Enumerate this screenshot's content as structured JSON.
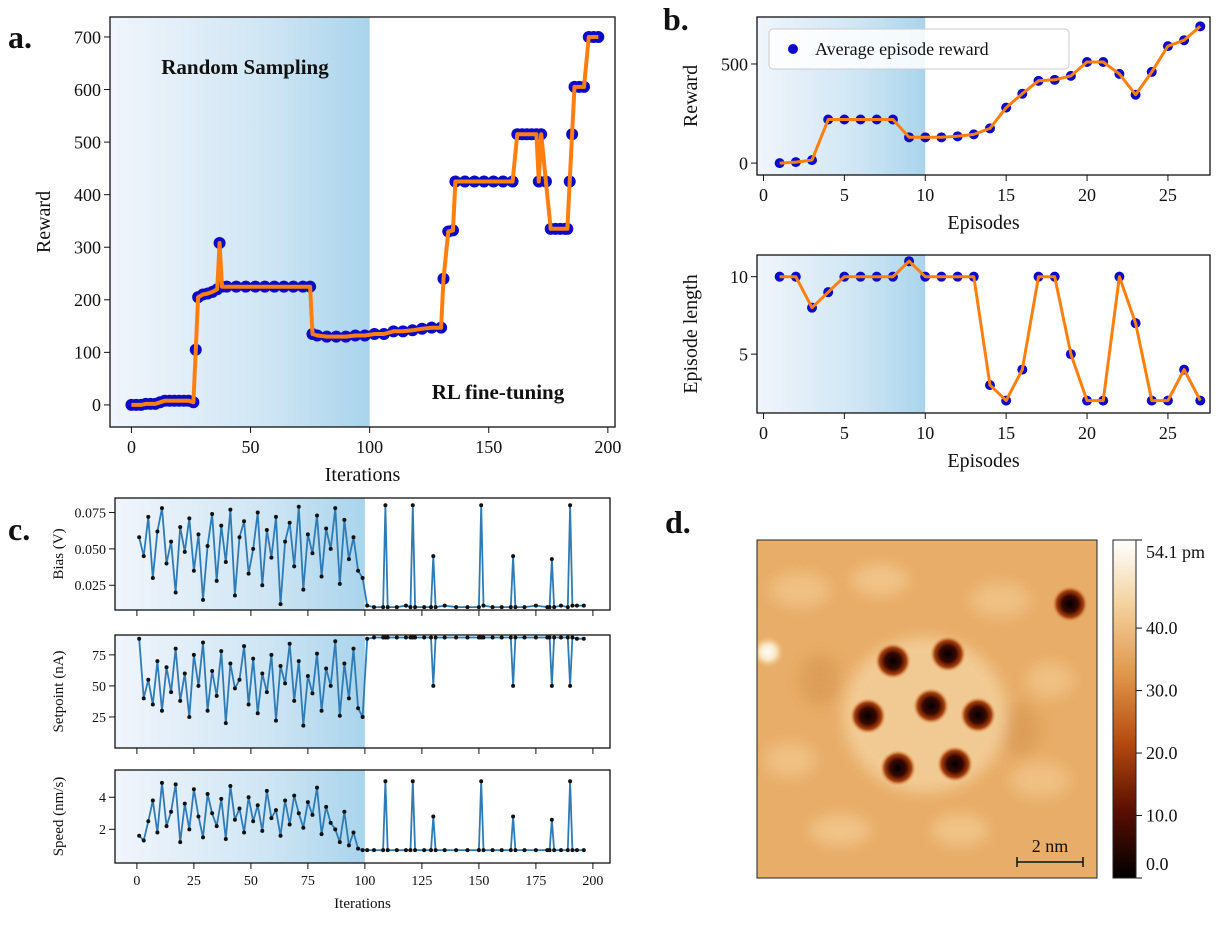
{
  "chart_data": [
    {
      "type": "line",
      "label": "a.",
      "xlabel": "Iterations",
      "ylabel": "Reward",
      "annotations": [
        "Random Sampling",
        "RL fine-tuning"
      ],
      "highlight_x": 100,
      "xlim": [
        -9,
        203
      ],
      "ylim": [
        -42,
        738
      ],
      "xticks": [
        0,
        50,
        100,
        150,
        200
      ],
      "yticks": [
        0,
        100,
        200,
        300,
        400,
        500,
        600,
        700
      ],
      "x": [
        0,
        2,
        4,
        6,
        8,
        10,
        12,
        14,
        16,
        18,
        20,
        22,
        24,
        26,
        27,
        28,
        30,
        32,
        34,
        36,
        37,
        38,
        40,
        44,
        48,
        52,
        56,
        60,
        64,
        68,
        72,
        75,
        76,
        78,
        82,
        86,
        90,
        94,
        98,
        102,
        106,
        110,
        114,
        118,
        122,
        126,
        130,
        131,
        133,
        135,
        136,
        140,
        144,
        148,
        152,
        156,
        160,
        162,
        164,
        166,
        168,
        170,
        171,
        172,
        174,
        176,
        178,
        180,
        182,
        183,
        184,
        185,
        186,
        188,
        190,
        192,
        194,
        196
      ],
      "series": [
        {
          "color": "#ff7f0e",
          "marker_color": "#0a0ac8",
          "values": [
            0,
            0,
            0,
            2,
            2,
            2,
            5,
            8,
            8,
            8,
            8,
            8,
            8,
            5,
            105,
            205,
            210,
            212,
            215,
            220,
            308,
            225,
            225,
            225,
            225,
            225,
            225,
            225,
            225,
            225,
            225,
            225,
            135,
            132,
            130,
            130,
            130,
            132,
            132,
            135,
            135,
            140,
            140,
            142,
            145,
            147,
            147,
            240,
            330,
            332,
            425,
            425,
            425,
            425,
            425,
            425,
            425,
            515,
            515,
            515,
            515,
            515,
            425,
            515,
            425,
            335,
            335,
            335,
            335,
            335,
            425,
            515,
            605,
            605,
            605,
            700,
            700,
            700
          ]
        }
      ]
    },
    {
      "type": "line",
      "label": "b.",
      "xlabel": "Episodes",
      "ylabel": "Reward",
      "highlight_x": 10,
      "xlim": [
        -0.4,
        27.6
      ],
      "ylim": [
        -60,
        737
      ],
      "xticks": [
        0,
        5,
        10,
        15,
        20,
        25
      ],
      "yticks": [
        0,
        500
      ],
      "x": [
        1,
        2,
        3,
        4,
        5,
        6,
        7,
        8,
        9,
        10,
        11,
        12,
        13,
        14,
        15,
        16,
        17,
        18,
        19,
        20,
        21,
        22,
        23,
        24,
        25,
        26,
        27
      ],
      "series": [
        {
          "name": "Average episode reward",
          "color": "#ff7f0e",
          "marker_color": "#0a0ac8",
          "values": [
            0,
            5,
            15,
            220,
            220,
            220,
            220,
            220,
            130,
            130,
            130,
            135,
            145,
            175,
            280,
            350,
            415,
            420,
            440,
            510,
            510,
            450,
            345,
            460,
            590,
            620,
            690
          ]
        }
      ]
    },
    {
      "type": "line",
      "xlabel": "Episodes",
      "ylabel": "Episode length",
      "highlight_x": 10,
      "xlim": [
        -0.4,
        27.6
      ],
      "ylim": [
        1.2,
        11.4
      ],
      "xticks": [
        0,
        5,
        10,
        15,
        20,
        25
      ],
      "yticks": [
        5,
        10
      ],
      "x": [
        1,
        2,
        3,
        4,
        5,
        6,
        7,
        8,
        9,
        10,
        11,
        12,
        13,
        14,
        15,
        16,
        17,
        18,
        19,
        20,
        21,
        22,
        23,
        24,
        25,
        26,
        27
      ],
      "series": [
        {
          "color": "#ff7f0e",
          "marker_color": "#0a0ac8",
          "values": [
            10,
            10,
            8,
            9,
            10,
            10,
            10,
            10,
            11,
            10,
            10,
            10,
            10,
            3,
            2,
            4,
            10,
            10,
            5,
            2,
            2,
            10,
            7,
            2,
            2,
            4,
            2
          ]
        }
      ]
    },
    {
      "type": "line",
      "label": "c.",
      "xlabel": "Iterations",
      "highlight_x": 100,
      "xlim": [
        -9.6,
        207.5
      ],
      "xticks": [
        0,
        25,
        50,
        75,
        100,
        125,
        150,
        175,
        200
      ],
      "x": [
        1,
        3,
        5,
        7,
        9,
        11,
        13,
        15,
        17,
        19,
        21,
        23,
        25,
        27,
        29,
        31,
        33,
        35,
        37,
        39,
        41,
        43,
        45,
        47,
        49,
        51,
        53,
        55,
        57,
        59,
        61,
        63,
        65,
        67,
        69,
        71,
        73,
        75,
        77,
        79,
        81,
        83,
        85,
        87,
        89,
        91,
        93,
        95,
        97,
        99,
        101,
        104,
        108,
        109,
        110,
        114,
        118,
        120,
        121,
        122,
        126,
        129,
        130,
        131,
        135,
        140,
        145,
        150,
        151,
        152,
        156,
        160,
        164,
        165,
        166,
        170,
        175,
        180,
        181,
        182,
        183,
        186,
        189,
        190,
        191,
        193,
        196
      ],
      "series": [
        {
          "ylabel": "Bias (V)",
          "color": "#2e7bb5",
          "marker_color": "#111111",
          "ylim": [
            0.008,
            0.085
          ],
          "yticks": [
            0.025,
            {
              "value": 0.05,
              "label": "0.050"
            },
            0.075
          ],
          "values": [
            0.058,
            0.045,
            0.072,
            0.03,
            0.062,
            0.078,
            0.04,
            0.055,
            0.02,
            0.065,
            0.048,
            0.071,
            0.035,
            0.06,
            0.015,
            0.052,
            0.074,
            0.028,
            0.066,
            0.041,
            0.077,
            0.018,
            0.058,
            0.069,
            0.033,
            0.05,
            0.075,
            0.025,
            0.063,
            0.044,
            0.072,
            0.012,
            0.055,
            0.068,
            0.038,
            0.079,
            0.022,
            0.06,
            0.047,
            0.073,
            0.031,
            0.064,
            0.05,
            0.078,
            0.026,
            0.07,
            0.043,
            0.058,
            0.035,
            0.03,
            0.011,
            0.01,
            0.01,
            0.08,
            0.01,
            0.01,
            0.011,
            0.01,
            0.08,
            0.01,
            0.01,
            0.01,
            0.045,
            0.01,
            0.011,
            0.01,
            0.01,
            0.01,
            0.08,
            0.011,
            0.01,
            0.01,
            0.01,
            0.045,
            0.01,
            0.01,
            0.011,
            0.01,
            0.01,
            0.043,
            0.01,
            0.011,
            0.01,
            0.08,
            0.011,
            0.011,
            0.011
          ]
        },
        {
          "ylabel": "Setpoint (nA)",
          "color": "#2e7bb5",
          "marker_color": "#111111",
          "ylim": [
            0,
            91
          ],
          "yticks": [
            25,
            50,
            75
          ],
          "values": [
            88,
            40,
            55,
            35,
            70,
            30,
            65,
            45,
            80,
            38,
            60,
            25,
            75,
            50,
            85,
            30,
            62,
            42,
            78,
            20,
            68,
            48,
            55,
            82,
            35,
            72,
            28,
            60,
            45,
            75,
            22,
            66,
            52,
            84,
            38,
            70,
            18,
            58,
            44,
            76,
            30,
            64,
            50,
            86,
            26,
            68,
            40,
            80,
            32,
            25,
            88,
            89,
            89,
            89,
            89,
            89,
            89,
            89,
            89,
            89,
            89,
            89,
            50,
            89,
            89,
            89,
            89,
            89,
            89,
            89,
            89,
            89,
            89,
            50,
            89,
            89,
            89,
            89,
            89,
            50,
            89,
            89,
            89,
            50,
            89,
            88,
            88
          ]
        },
        {
          "ylabel": "Speed (nm/s)",
          "color": "#2e7bb5",
          "marker_color": "#111111",
          "ylim": [
            -0.1,
            5.7
          ],
          "yticks": [
            2,
            4
          ],
          "values": [
            1.6,
            1.3,
            2.5,
            3.8,
            1.8,
            4.9,
            2.2,
            3.1,
            4.8,
            1.2,
            3.6,
            2.0,
            4.5,
            2.8,
            1.5,
            4.2,
            3.0,
            2.2,
            3.9,
            1.4,
            4.7,
            2.6,
            3.3,
            1.8,
            4.0,
            2.5,
            3.5,
            1.9,
            4.4,
            2.7,
            3.2,
            1.6,
            3.8,
            2.3,
            4.1,
            3.0,
            2.1,
            3.7,
            2.9,
            4.6,
            1.7,
            3.4,
            2.4,
            2.0,
            1.2,
            3.1,
            1.0,
            1.8,
            0.8,
            0.7,
            0.7,
            0.7,
            0.7,
            5,
            0.7,
            0.7,
            0.7,
            0.7,
            5,
            0.7,
            0.7,
            0.7,
            2.8,
            0.7,
            0.7,
            0.7,
            0.7,
            0.7,
            5,
            0.7,
            0.7,
            0.7,
            0.7,
            2.8,
            0.7,
            0.7,
            0.7,
            0.7,
            0.7,
            2.6,
            0.7,
            0.7,
            0.7,
            5,
            0.7,
            0.7,
            0.7
          ]
        }
      ]
    },
    {
      "type": "heatmap",
      "label": "d.",
      "scalebar": "2 nm",
      "clim": [
        0,
        54.1
      ],
      "cticks": [
        {
          "value": 54.1,
          "label": "54.1 pm"
        },
        {
          "value": 40,
          "label": "40.0"
        },
        {
          "value": 30,
          "label": "30.0"
        },
        {
          "value": 20,
          "label": "20.0"
        },
        {
          "value": 10,
          "label": "10.0"
        },
        {
          "value": 0,
          "label": "0.0"
        }
      ]
    }
  ]
}
